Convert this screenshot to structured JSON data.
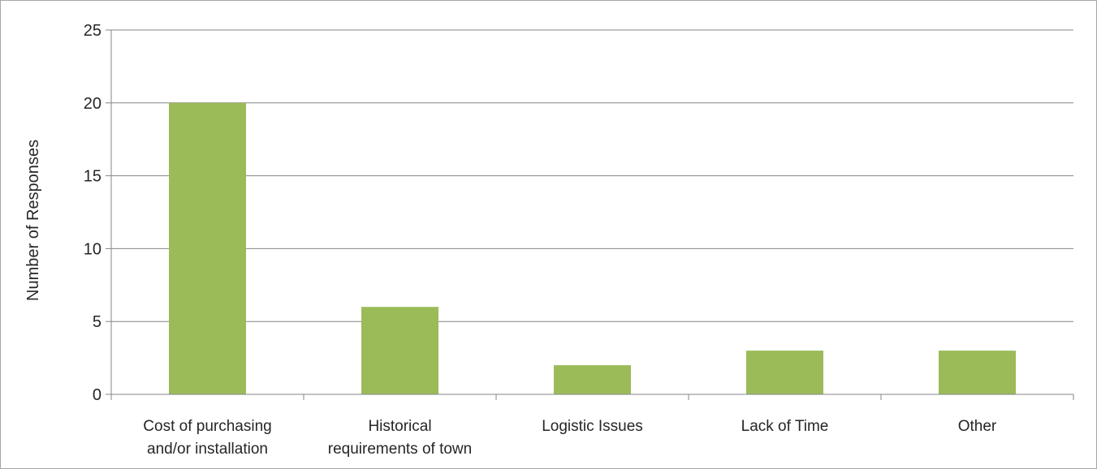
{
  "chart_data": {
    "type": "bar",
    "categories": [
      [
        "Cost of purchasing",
        "and/or installation"
      ],
      [
        "Historical",
        "requirements of town"
      ],
      [
        "Logistic Issues"
      ],
      [
        "Lack of Time"
      ],
      [
        "Other"
      ]
    ],
    "values": [
      20,
      6,
      2,
      3,
      3
    ],
    "title": "",
    "xlabel": "",
    "ylabel": "Number of Responses",
    "ylim": [
      0,
      25
    ],
    "yticks": [
      0,
      5,
      10,
      15,
      20,
      25
    ],
    "grid": true,
    "legend": "none",
    "bar_color": "#9bbb59",
    "grid_color": "#868686",
    "text_color": "#262626"
  }
}
